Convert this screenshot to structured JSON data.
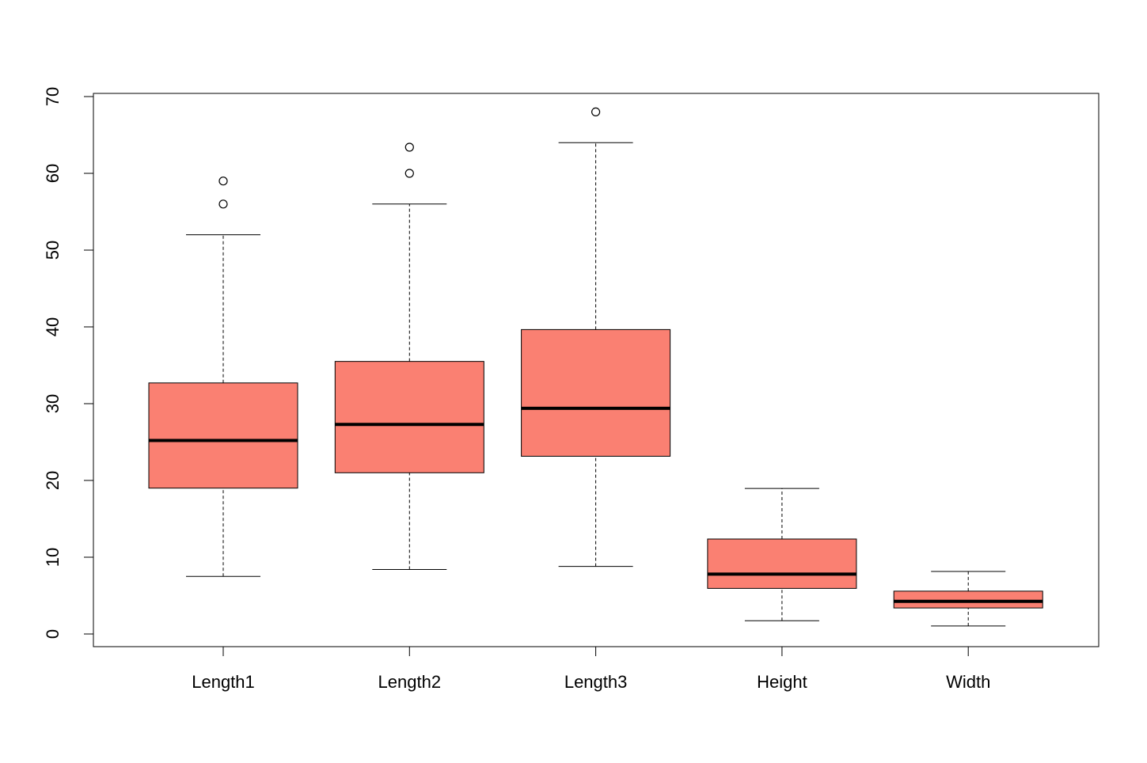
{
  "chart_data": {
    "type": "boxplot",
    "title": "",
    "xlabel": "",
    "ylabel": "",
    "ylim": [
      -1.7,
      70.3
    ],
    "yticks": [
      "0",
      "10",
      "20",
      "30",
      "40",
      "50",
      "60",
      "70"
    ],
    "categories": [
      "Length1",
      "Length2",
      "Length3",
      "Height",
      "Width"
    ],
    "grid": false,
    "box_color": "#FA8072",
    "line_color": "#000000",
    "boxes": [
      {
        "category": "Length1",
        "whisker_low": 7.5,
        "q1": 19.0,
        "median": 25.2,
        "q3": 32.7,
        "whisker_high": 52.0,
        "outliers": [
          56.0,
          59.0
        ]
      },
      {
        "category": "Length2",
        "whisker_low": 8.4,
        "q1": 21.0,
        "median": 27.3,
        "q3": 35.5,
        "whisker_high": 56.0,
        "outliers": [
          60.0,
          63.4
        ]
      },
      {
        "category": "Length3",
        "whisker_low": 8.8,
        "q1": 23.15,
        "median": 29.4,
        "q3": 39.65,
        "whisker_high": 64.0,
        "outliers": [
          68.0
        ]
      },
      {
        "category": "Height",
        "whisker_low": 1.73,
        "q1": 5.94,
        "median": 7.79,
        "q3": 12.37,
        "whisker_high": 18.96,
        "outliers": []
      },
      {
        "category": "Width",
        "whisker_low": 1.05,
        "q1": 3.39,
        "median": 4.25,
        "q3": 5.58,
        "whisker_high": 8.14,
        "outliers": []
      }
    ]
  }
}
